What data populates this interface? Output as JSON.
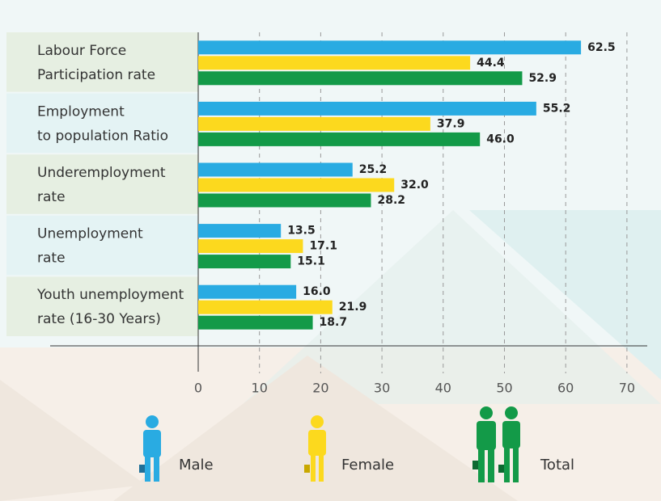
{
  "chart_data": {
    "type": "bar",
    "orientation": "horizontal",
    "categories": [
      [
        "Labour Force",
        "Participation rate"
      ],
      [
        "Employment",
        "to population Ratio"
      ],
      [
        "Underemployment",
        "rate"
      ],
      [
        "Unemployment",
        "rate"
      ],
      [
        "Youth unemployment",
        "rate (16-30 Years)"
      ]
    ],
    "series": [
      {
        "name": "Male",
        "color": "#29abe2",
        "values": [
          62.5,
          55.2,
          25.2,
          13.5,
          16.0
        ],
        "value_labels": [
          "62.5",
          "55.2",
          "25.2",
          "13.5",
          "16.0"
        ]
      },
      {
        "name": "Female",
        "color": "#fcd91e",
        "values": [
          44.4,
          37.9,
          32.0,
          17.1,
          21.9
        ],
        "value_labels": [
          "44.4",
          "37.9",
          "32.0",
          "17.1",
          "21.9"
        ]
      },
      {
        "name": "Total",
        "color": "#139a48",
        "values": [
          52.9,
          46.0,
          28.2,
          15.1,
          18.7
        ],
        "value_labels": [
          "52.9",
          "46.0",
          "28.2",
          "15.1",
          "18.7"
        ]
      }
    ],
    "xlim": [
      0,
      73
    ],
    "xticks": [
      0,
      10,
      20,
      30,
      40,
      50,
      60,
      70
    ],
    "grid": true
  }
}
